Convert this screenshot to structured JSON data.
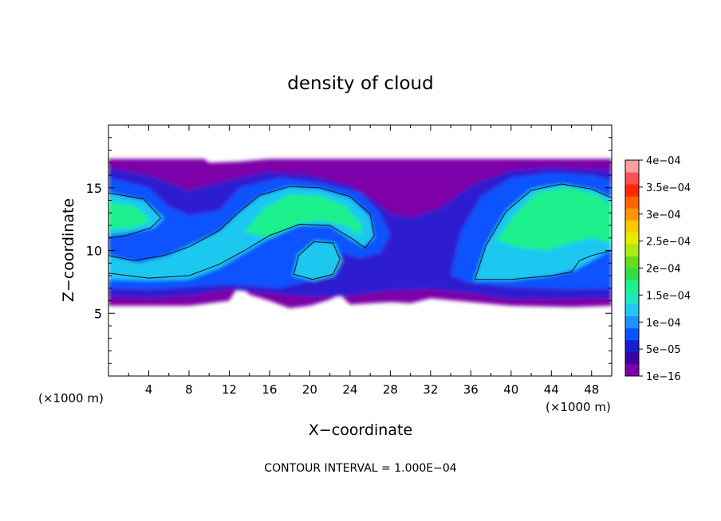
{
  "chart_data": {
    "type": "heatmap",
    "title": "density of cloud",
    "xlabel": "X−coordinate",
    "ylabel": "Z−coordinate",
    "x_unit_left": "(×1000 m)",
    "x_unit_right": "(×1000 m)",
    "xlim": [
      0,
      50
    ],
    "ylim": [
      0,
      20
    ],
    "x_ticks": [
      4,
      8,
      12,
      16,
      20,
      24,
      28,
      32,
      36,
      40,
      44,
      48
    ],
    "y_ticks": [
      5,
      10,
      15
    ],
    "footer": "CONTOUR INTERVAL = 1.000E−04",
    "colorbar": {
      "labels": [
        "1e−16",
        "5e−05",
        "1e−04",
        "1.5e−04",
        "2e−04",
        "2.5e−04",
        "3e−04",
        "3.5e−04",
        "4e−04"
      ],
      "values": [
        1e-16,
        5e-05,
        0.0001,
        0.00015,
        0.0002,
        0.00025,
        0.0003,
        0.00035,
        0.0004
      ],
      "colors": [
        "#7d00a8",
        "#3c00a4",
        "#1c1cd2",
        "#0a52ff",
        "#1e90ff",
        "#1ec8f0",
        "#1ee6c3",
        "#1ef08c",
        "#32dc46",
        "#64dc1e",
        "#aaeb14",
        "#e6eb00",
        "#ffc800",
        "#ff9600",
        "#ff6400",
        "#ff2800",
        "#ff5050",
        "#ff9ea0"
      ]
    },
    "cloud": {
      "x_range": [
        0,
        50
      ],
      "z_top": 17.3,
      "z_bottom_approx": 5.5
    },
    "levels": {
      "edge": "#7d00a8",
      "low": "#2e1ad0",
      "mid": "#0a52ff",
      "high": "#1ec8f0",
      "core": "#1ef08c"
    }
  }
}
